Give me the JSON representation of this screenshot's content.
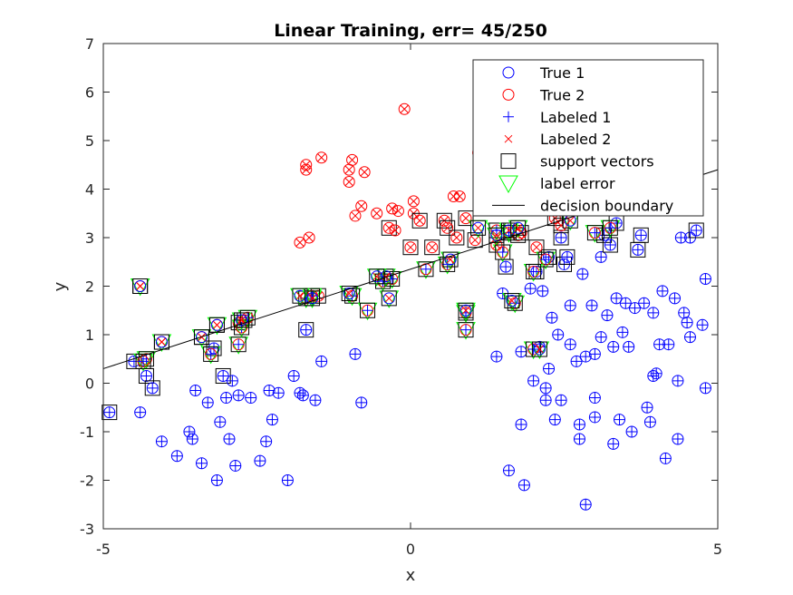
{
  "chart_data": {
    "type": "scatter",
    "title": "Linear Training, err= 45/250",
    "xlabel": "x",
    "ylabel": "y",
    "xlim": [
      -5,
      5
    ],
    "ylim": [
      -3,
      7
    ],
    "xticks": [
      "-5",
      "0",
      "5"
    ],
    "yticks": [
      "-3",
      "-2",
      "-1",
      "0",
      "1",
      "2",
      "3",
      "4",
      "5",
      "6",
      "7"
    ],
    "grid": false,
    "legend_position": "top-right",
    "colors": {
      "class1": "#0000ff",
      "class2": "#ff0000",
      "support": "#000000",
      "error": "#00ff00",
      "boundary": "#000000"
    },
    "legend": [
      {
        "label": "True 1",
        "marker": "circle",
        "color": "#0000ff"
      },
      {
        "label": "True 2",
        "marker": "circle",
        "color": "#ff0000"
      },
      {
        "label": "Labeled 1",
        "marker": "plus",
        "color": "#0000ff"
      },
      {
        "label": "Labeled 2",
        "marker": "x",
        "color": "#ff0000"
      },
      {
        "label": "support vectors",
        "marker": "square",
        "color": "#000000"
      },
      {
        "label": "label error",
        "marker": "triangle-down",
        "color": "#00ff00"
      },
      {
        "label": "decision boundary",
        "marker": "line",
        "color": "#000000"
      }
    ],
    "decision_boundary": {
      "x": [
        -5,
        5
      ],
      "y": [
        0.3,
        4.4
      ]
    },
    "points": [
      [
        -4.9,
        -0.6,
        1,
        1,
        1,
        0
      ],
      [
        -4.5,
        0.45,
        1,
        1,
        1,
        0
      ],
      [
        -4.4,
        -0.6,
        1,
        1,
        0,
        0
      ],
      [
        -4.3,
        0.15,
        1,
        1,
        1,
        0
      ],
      [
        -4.2,
        -0.1,
        1,
        1,
        1,
        0
      ],
      [
        -4.05,
        -1.2,
        1,
        1,
        0,
        0
      ],
      [
        -3.8,
        -1.5,
        1,
        1,
        0,
        0
      ],
      [
        -3.6,
        -1.0,
        1,
        1,
        0,
        0
      ],
      [
        -3.55,
        -1.15,
        1,
        1,
        0,
        0
      ],
      [
        -3.5,
        -0.15,
        1,
        1,
        0,
        0
      ],
      [
        -3.4,
        -1.65,
        1,
        1,
        0,
        0
      ],
      [
        -3.3,
        -0.4,
        1,
        1,
        0,
        0
      ],
      [
        -3.2,
        0.72,
        1,
        1,
        1,
        0
      ],
      [
        -3.15,
        -2.0,
        1,
        1,
        0,
        0
      ],
      [
        -3.1,
        -0.8,
        1,
        1,
        0,
        0
      ],
      [
        -3.05,
        0.15,
        1,
        1,
        1,
        0
      ],
      [
        -3.0,
        -0.3,
        1,
        1,
        0,
        0
      ],
      [
        -2.95,
        -1.15,
        1,
        1,
        0,
        0
      ],
      [
        -2.9,
        0.05,
        1,
        1,
        0,
        0
      ],
      [
        -2.85,
        -1.7,
        1,
        1,
        0,
        0
      ],
      [
        -2.8,
        -0.25,
        1,
        1,
        0,
        0
      ],
      [
        -2.6,
        -0.3,
        1,
        1,
        0,
        0
      ],
      [
        -2.45,
        -1.6,
        1,
        1,
        0,
        0
      ],
      [
        -2.35,
        -1.2,
        1,
        1,
        0,
        0
      ],
      [
        -2.3,
        -0.15,
        1,
        1,
        0,
        0
      ],
      [
        -2.25,
        -0.75,
        1,
        1,
        0,
        0
      ],
      [
        -2.15,
        -0.2,
        1,
        1,
        0,
        0
      ],
      [
        -2.0,
        -2.0,
        1,
        1,
        0,
        0
      ],
      [
        -1.9,
        0.15,
        1,
        1,
        0,
        0
      ],
      [
        -1.8,
        -0.2,
        1,
        1,
        0,
        0
      ],
      [
        -1.75,
        -0.25,
        1,
        1,
        0,
        0
      ],
      [
        -1.7,
        1.1,
        1,
        1,
        1,
        0
      ],
      [
        -1.55,
        -0.35,
        1,
        1,
        0,
        0
      ],
      [
        -1.45,
        0.45,
        1,
        1,
        0,
        0
      ],
      [
        -0.9,
        0.6,
        1,
        1,
        0,
        0
      ],
      [
        -0.8,
        -0.4,
        1,
        1,
        0,
        0
      ],
      [
        1.4,
        0.55,
        1,
        1,
        0,
        0
      ],
      [
        1.5,
        1.85,
        1,
        1,
        0,
        0
      ],
      [
        1.55,
        2.4,
        1,
        1,
        1,
        0
      ],
      [
        1.6,
        -1.8,
        1,
        1,
        0,
        0
      ],
      [
        1.8,
        -0.85,
        1,
        1,
        0,
        0
      ],
      [
        1.8,
        0.65,
        1,
        1,
        0,
        0
      ],
      [
        1.85,
        -2.1,
        1,
        1,
        0,
        0
      ],
      [
        1.95,
        1.95,
        1,
        1,
        0,
        0
      ],
      [
        2.0,
        0.05,
        1,
        1,
        0,
        0
      ],
      [
        2.05,
        2.3,
        1,
        1,
        1,
        0
      ],
      [
        2.1,
        0.75,
        1,
        1,
        0,
        0
      ],
      [
        2.15,
        1.9,
        1,
        1,
        0,
        0
      ],
      [
        2.2,
        -0.35,
        1,
        1,
        0,
        0
      ],
      [
        2.2,
        -0.1,
        1,
        1,
        0,
        0
      ],
      [
        2.25,
        2.6,
        1,
        1,
        1,
        0
      ],
      [
        2.25,
        0.3,
        1,
        1,
        0,
        0
      ],
      [
        2.3,
        1.35,
        1,
        1,
        0,
        0
      ],
      [
        2.35,
        -0.75,
        1,
        1,
        0,
        0
      ],
      [
        2.4,
        1.0,
        1,
        1,
        0,
        0
      ],
      [
        2.45,
        -0.35,
        1,
        1,
        0,
        0
      ],
      [
        2.45,
        3.0,
        1,
        1,
        1,
        0
      ],
      [
        2.5,
        2.45,
        1,
        1,
        1,
        0
      ],
      [
        2.55,
        2.6,
        1,
        1,
        1,
        0
      ],
      [
        2.6,
        0.8,
        1,
        1,
        0,
        0
      ],
      [
        2.6,
        1.6,
        1,
        1,
        0,
        0
      ],
      [
        2.7,
        0.45,
        1,
        1,
        0,
        0
      ],
      [
        2.75,
        -1.15,
        1,
        1,
        0,
        0
      ],
      [
        2.75,
        -0.85,
        1,
        1,
        0,
        0
      ],
      [
        2.8,
        2.25,
        1,
        1,
        0,
        0
      ],
      [
        2.85,
        0.55,
        1,
        1,
        0,
        0
      ],
      [
        2.85,
        -2.5,
        1,
        1,
        0,
        0
      ],
      [
        2.95,
        1.6,
        1,
        1,
        0,
        0
      ],
      [
        3.0,
        -0.3,
        1,
        1,
        0,
        0
      ],
      [
        3.0,
        0.6,
        1,
        1,
        0,
        0
      ],
      [
        3.0,
        -0.7,
        1,
        1,
        0,
        0
      ],
      [
        3.1,
        2.6,
        1,
        1,
        0,
        0
      ],
      [
        3.1,
        0.95,
        1,
        1,
        0,
        0
      ],
      [
        3.15,
        3.05,
        1,
        1,
        1,
        0
      ],
      [
        3.2,
        1.4,
        1,
        1,
        0,
        0
      ],
      [
        3.25,
        2.85,
        1,
        1,
        1,
        0
      ],
      [
        3.3,
        -1.25,
        1,
        1,
        0,
        0
      ],
      [
        3.3,
        0.75,
        1,
        1,
        0,
        0
      ],
      [
        3.35,
        1.75,
        1,
        1,
        0,
        0
      ],
      [
        3.35,
        3.3,
        1,
        1,
        1,
        0
      ],
      [
        3.4,
        -0.75,
        1,
        1,
        0,
        0
      ],
      [
        3.45,
        1.05,
        1,
        1,
        0,
        0
      ],
      [
        3.5,
        1.65,
        1,
        1,
        0,
        0
      ],
      [
        3.55,
        0.75,
        1,
        1,
        0,
        0
      ],
      [
        3.6,
        -1.0,
        1,
        1,
        0,
        0
      ],
      [
        3.65,
        1.55,
        1,
        1,
        0,
        0
      ],
      [
        3.7,
        2.75,
        1,
        1,
        1,
        0
      ],
      [
        3.75,
        3.05,
        1,
        1,
        1,
        0
      ],
      [
        3.8,
        1.65,
        1,
        1,
        0,
        0
      ],
      [
        3.85,
        -0.5,
        1,
        1,
        0,
        0
      ],
      [
        3.9,
        -0.8,
        1,
        1,
        0,
        0
      ],
      [
        3.95,
        0.15,
        1,
        1,
        0,
        0
      ],
      [
        3.95,
        1.45,
        1,
        1,
        0,
        0
      ],
      [
        4.0,
        0.2,
        1,
        1,
        0,
        0
      ],
      [
        4.05,
        0.8,
        1,
        1,
        0,
        0
      ],
      [
        4.1,
        1.9,
        1,
        1,
        0,
        0
      ],
      [
        4.15,
        -1.55,
        1,
        1,
        0,
        0
      ],
      [
        4.2,
        0.8,
        1,
        1,
        0,
        0
      ],
      [
        4.3,
        1.75,
        1,
        1,
        0,
        0
      ],
      [
        4.35,
        0.05,
        1,
        1,
        0,
        0
      ],
      [
        4.35,
        -1.15,
        1,
        1,
        0,
        0
      ],
      [
        4.4,
        3.0,
        1,
        1,
        0,
        0
      ],
      [
        4.45,
        1.45,
        1,
        1,
        0,
        0
      ],
      [
        4.5,
        1.25,
        1,
        1,
        0,
        0
      ],
      [
        4.55,
        0.95,
        1,
        1,
        0,
        0
      ],
      [
        4.55,
        3.0,
        1,
        1,
        0,
        0
      ],
      [
        4.65,
        3.15,
        1,
        1,
        1,
        0
      ],
      [
        4.75,
        1.2,
        1,
        1,
        0,
        0
      ],
      [
        4.8,
        -0.1,
        1,
        1,
        0,
        0
      ],
      [
        4.8,
        2.15,
        1,
        1,
        0,
        0
      ],
      [
        -4.4,
        2.0,
        2,
        2,
        1,
        0
      ],
      [
        -4.05,
        0.85,
        2,
        2,
        1,
        0
      ],
      [
        -3.4,
        0.95,
        2,
        2,
        1,
        0
      ],
      [
        -3.15,
        1.2,
        2,
        2,
        1,
        0
      ],
      [
        -2.8,
        1.25,
        2,
        2,
        1,
        0
      ],
      [
        -2.7,
        1.3,
        2,
        2,
        1,
        0
      ],
      [
        -1.8,
        2.9,
        2,
        2,
        0,
        0
      ],
      [
        -1.7,
        4.5,
        2,
        2,
        0,
        0
      ],
      [
        -1.7,
        4.4,
        2,
        2,
        0,
        0
      ],
      [
        -1.65,
        3.0,
        2,
        2,
        0,
        0
      ],
      [
        -1.5,
        1.8,
        2,
        2,
        1,
        0
      ],
      [
        -1.45,
        4.65,
        2,
        2,
        0,
        0
      ],
      [
        -1.0,
        4.4,
        2,
        2,
        0,
        0
      ],
      [
        -1.0,
        4.15,
        2,
        2,
        0,
        0
      ],
      [
        -0.95,
        4.6,
        2,
        2,
        0,
        0
      ],
      [
        -0.9,
        3.45,
        2,
        2,
        0,
        0
      ],
      [
        -0.8,
        3.65,
        2,
        2,
        0,
        0
      ],
      [
        -0.75,
        4.35,
        2,
        2,
        0,
        0
      ],
      [
        -0.55,
        3.5,
        2,
        2,
        0,
        0
      ],
      [
        -0.35,
        3.2,
        2,
        2,
        1,
        0
      ],
      [
        -0.3,
        3.6,
        2,
        2,
        0,
        0
      ],
      [
        -0.25,
        3.15,
        2,
        2,
        0,
        0
      ],
      [
        -0.2,
        3.55,
        2,
        2,
        0,
        0
      ],
      [
        -0.1,
        5.65,
        2,
        2,
        0,
        0
      ],
      [
        0.0,
        2.8,
        2,
        2,
        1,
        0
      ],
      [
        0.05,
        3.75,
        2,
        2,
        0,
        0
      ],
      [
        0.05,
        3.5,
        2,
        2,
        0,
        0
      ],
      [
        0.15,
        3.35,
        2,
        2,
        1,
        0
      ],
      [
        0.35,
        2.8,
        2,
        2,
        1,
        0
      ],
      [
        0.55,
        3.35,
        2,
        2,
        1,
        0
      ],
      [
        0.6,
        3.2,
        2,
        2,
        1,
        0
      ],
      [
        0.7,
        3.85,
        2,
        2,
        0,
        0
      ],
      [
        0.75,
        3.0,
        2,
        2,
        1,
        0
      ],
      [
        0.8,
        3.85,
        2,
        2,
        0,
        0
      ],
      [
        0.9,
        3.4,
        2,
        2,
        1,
        0
      ],
      [
        1.05,
        2.95,
        2,
        2,
        1,
        0
      ],
      [
        1.4,
        2.85,
        2,
        2,
        1,
        0
      ],
      [
        1.75,
        3.05,
        2,
        2,
        1,
        0
      ],
      [
        1.8,
        3.1,
        2,
        2,
        1,
        0
      ],
      [
        1.1,
        4.75,
        2,
        2,
        0,
        0
      ],
      [
        1.55,
        3.65,
        2,
        2,
        1,
        0
      ],
      [
        2.05,
        2.8,
        2,
        2,
        1,
        0
      ],
      [
        2.35,
        3.4,
        2,
        2,
        1,
        0
      ],
      [
        2.45,
        3.25,
        2,
        2,
        1,
        0
      ],
      [
        -4.3,
        0.5,
        2,
        1,
        1,
        1
      ],
      [
        -4.35,
        0.45,
        2,
        1,
        1,
        1
      ],
      [
        -3.25,
        0.6,
        2,
        1,
        1,
        1
      ],
      [
        -2.8,
        0.8,
        2,
        1,
        1,
        1
      ],
      [
        -2.75,
        1.15,
        2,
        1,
        1,
        1
      ],
      [
        -2.65,
        1.35,
        2,
        1,
        1,
        1
      ],
      [
        -1.7,
        1.75,
        2,
        1,
        1,
        1
      ],
      [
        -1.6,
        1.8,
        2,
        1,
        1,
        1
      ],
      [
        -0.95,
        1.8,
        2,
        1,
        1,
        1
      ],
      [
        -0.7,
        1.5,
        2,
        1,
        1,
        1
      ],
      [
        -0.45,
        2.1,
        2,
        1,
        1,
        1
      ],
      [
        -0.3,
        2.15,
        2,
        1,
        1,
        1
      ],
      [
        0.25,
        2.35,
        2,
        1,
        1,
        1
      ],
      [
        0.6,
        2.45,
        2,
        1,
        1,
        1
      ],
      [
        0.9,
        1.45,
        2,
        1,
        1,
        1
      ],
      [
        0.9,
        1.1,
        2,
        1,
        1,
        1
      ],
      [
        1.7,
        1.65,
        2,
        1,
        1,
        1
      ],
      [
        2.0,
        0.7,
        2,
        1,
        1,
        1
      ],
      [
        2.2,
        2.55,
        2,
        1,
        1,
        1
      ],
      [
        1.4,
        3.15,
        2,
        1,
        1,
        1
      ],
      [
        1.6,
        3.1,
        2,
        1,
        1,
        1
      ],
      [
        2.0,
        2.3,
        2,
        1,
        1,
        1
      ],
      [
        3.0,
        3.1,
        2,
        1,
        1,
        1
      ],
      [
        3.25,
        3.2,
        2,
        1,
        1,
        1
      ],
      [
        1.5,
        2.7,
        2,
        1,
        1,
        1
      ],
      [
        -4.4,
        2.0,
        1,
        2,
        1,
        1
      ],
      [
        -4.05,
        0.85,
        1,
        2,
        1,
        1
      ],
      [
        -3.4,
        0.95,
        1,
        2,
        1,
        1
      ],
      [
        -3.15,
        1.2,
        1,
        2,
        1,
        1
      ],
      [
        -2.75,
        1.3,
        1,
        2,
        1,
        1
      ],
      [
        -1.8,
        1.8,
        1,
        2,
        1,
        1
      ],
      [
        -1.6,
        1.75,
        1,
        2,
        1,
        1
      ],
      [
        -0.4,
        2.2,
        1,
        2,
        1,
        1
      ],
      [
        -0.35,
        1.75,
        1,
        2,
        1,
        1
      ],
      [
        0.9,
        1.5,
        1,
        2,
        1,
        1
      ],
      [
        1.65,
        1.7,
        1,
        2,
        1,
        1
      ],
      [
        2.1,
        0.7,
        1,
        2,
        1,
        1
      ],
      [
        1.1,
        3.2,
        1,
        2,
        1,
        1
      ],
      [
        1.6,
        3.15,
        1,
        2,
        1,
        1
      ],
      [
        2.6,
        3.35,
        1,
        2,
        1,
        1
      ],
      [
        -0.55,
        2.2,
        1,
        2,
        1,
        1
      ],
      [
        0.65,
        2.55,
        1,
        2,
        1,
        1
      ],
      [
        -1.0,
        1.85,
        1,
        2,
        1,
        1
      ],
      [
        1.4,
        3.05,
        1,
        2,
        1,
        1
      ],
      [
        1.75,
        3.2,
        1,
        2,
        1,
        1
      ]
    ]
  }
}
